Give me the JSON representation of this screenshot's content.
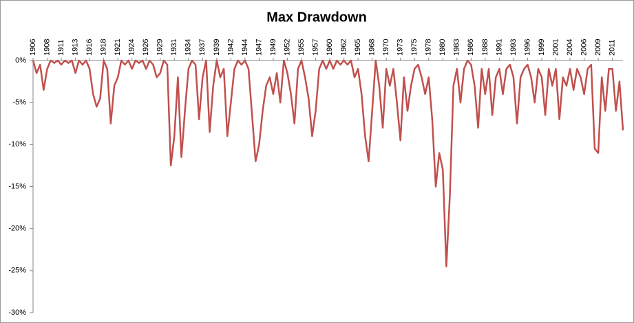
{
  "chart_data": {
    "type": "line",
    "title": "Max Drawdown",
    "categories": [
      "1906",
      null,
      null,
      null,
      "1908",
      null,
      null,
      null,
      "1911",
      null,
      null,
      null,
      "1913",
      null,
      null,
      null,
      "1916",
      null,
      null,
      null,
      "1918",
      null,
      null,
      null,
      "1921",
      null,
      null,
      null,
      "1924",
      null,
      null,
      null,
      "1926",
      null,
      null,
      null,
      "1929",
      null,
      null,
      null,
      "1931",
      null,
      null,
      null,
      "1934",
      null,
      null,
      null,
      "1937",
      null,
      null,
      null,
      "1939",
      null,
      null,
      null,
      "1942",
      null,
      null,
      null,
      "1944",
      null,
      null,
      null,
      "1947",
      null,
      null,
      null,
      "1949",
      null,
      null,
      null,
      "1952",
      null,
      null,
      null,
      "1955",
      null,
      null,
      null,
      "1957",
      null,
      null,
      null,
      "1960",
      null,
      null,
      null,
      "1962",
      null,
      null,
      null,
      "1965",
      null,
      null,
      null,
      "1968",
      null,
      null,
      null,
      "1970",
      null,
      null,
      null,
      "1973",
      null,
      null,
      null,
      "1975",
      null,
      null,
      null,
      "1978",
      null,
      null,
      null,
      "1980",
      null,
      null,
      null,
      "1983",
      null,
      null,
      null,
      "1986",
      null,
      null,
      null,
      "1988",
      null,
      null,
      null,
      "1991",
      null,
      null,
      null,
      "1993",
      null,
      null,
      null,
      "1996",
      null,
      null,
      null,
      "1999",
      null,
      null,
      null,
      "2001",
      null,
      null,
      null,
      "2004",
      null,
      null,
      null,
      "2006",
      null,
      null,
      null,
      "2009",
      null,
      null,
      null,
      "2011",
      null,
      null,
      null
    ],
    "series": [
      {
        "name": "Max Drawdown",
        "color": "#c0504d",
        "values": [
          0,
          -1.5,
          -0.5,
          -3.5,
          -1,
          0,
          -0.3,
          0,
          -0.5,
          0,
          -0.3,
          0,
          -1.5,
          0,
          -0.5,
          0,
          -1,
          -4,
          -5.5,
          -4.5,
          0,
          -1,
          -7.5,
          -3,
          -2,
          0,
          -0.5,
          0,
          -1,
          0,
          -0.3,
          0,
          -1,
          0,
          -0.5,
          -2,
          -1.5,
          0,
          -0.5,
          -12.5,
          -9,
          -2,
          -11.5,
          -6,
          -1,
          0,
          -0.5,
          -7,
          -2,
          0,
          -8.5,
          -3,
          0,
          -2,
          -1,
          -9,
          -5,
          -1,
          0,
          -0.5,
          0,
          -1,
          -6.5,
          -12,
          -10,
          -6,
          -3,
          -2,
          -4,
          -1.5,
          -5,
          0,
          -1.5,
          -4,
          -7.5,
          -1,
          0,
          -2,
          -4.5,
          -9,
          -6,
          -1,
          0,
          -1,
          0,
          -1,
          0,
          -0.5,
          0,
          -0.5,
          0,
          -2,
          -1,
          -4,
          -9,
          -12,
          -6,
          0,
          -3,
          -8,
          -1,
          -3,
          -1,
          -5,
          -9.5,
          -2,
          -6,
          -3,
          -1,
          -0.5,
          -2,
          -4,
          -2,
          -7,
          -15,
          -11,
          -13,
          -24.5,
          -16,
          -3,
          -1,
          -5,
          -1,
          0,
          -0.5,
          -3,
          -8,
          -1,
          -4,
          -1,
          -6.5,
          -2,
          -1,
          -4,
          -1,
          -0.5,
          -2,
          -7.5,
          -2,
          -1,
          -0.5,
          -2,
          -5,
          -1,
          -2,
          -6.5,
          -1,
          -3,
          -1,
          -7,
          -2,
          -3,
          -1,
          -3.5,
          -1,
          -2,
          -4,
          -1,
          -0.5,
          -10.5,
          -11,
          -2,
          -6,
          -1,
          -1,
          -6,
          -2.5,
          -8.3
        ]
      }
    ],
    "ylim": [
      -30,
      0
    ],
    "yticks": [
      {
        "value": 0,
        "label": "0%"
      },
      {
        "value": -5,
        "label": "-5%"
      },
      {
        "value": -10,
        "label": "-10%"
      },
      {
        "value": -15,
        "label": "-15%"
      },
      {
        "value": -20,
        "label": "-20%"
      },
      {
        "value": -25,
        "label": "-25%"
      },
      {
        "value": -30,
        "label": "-30%"
      }
    ]
  }
}
